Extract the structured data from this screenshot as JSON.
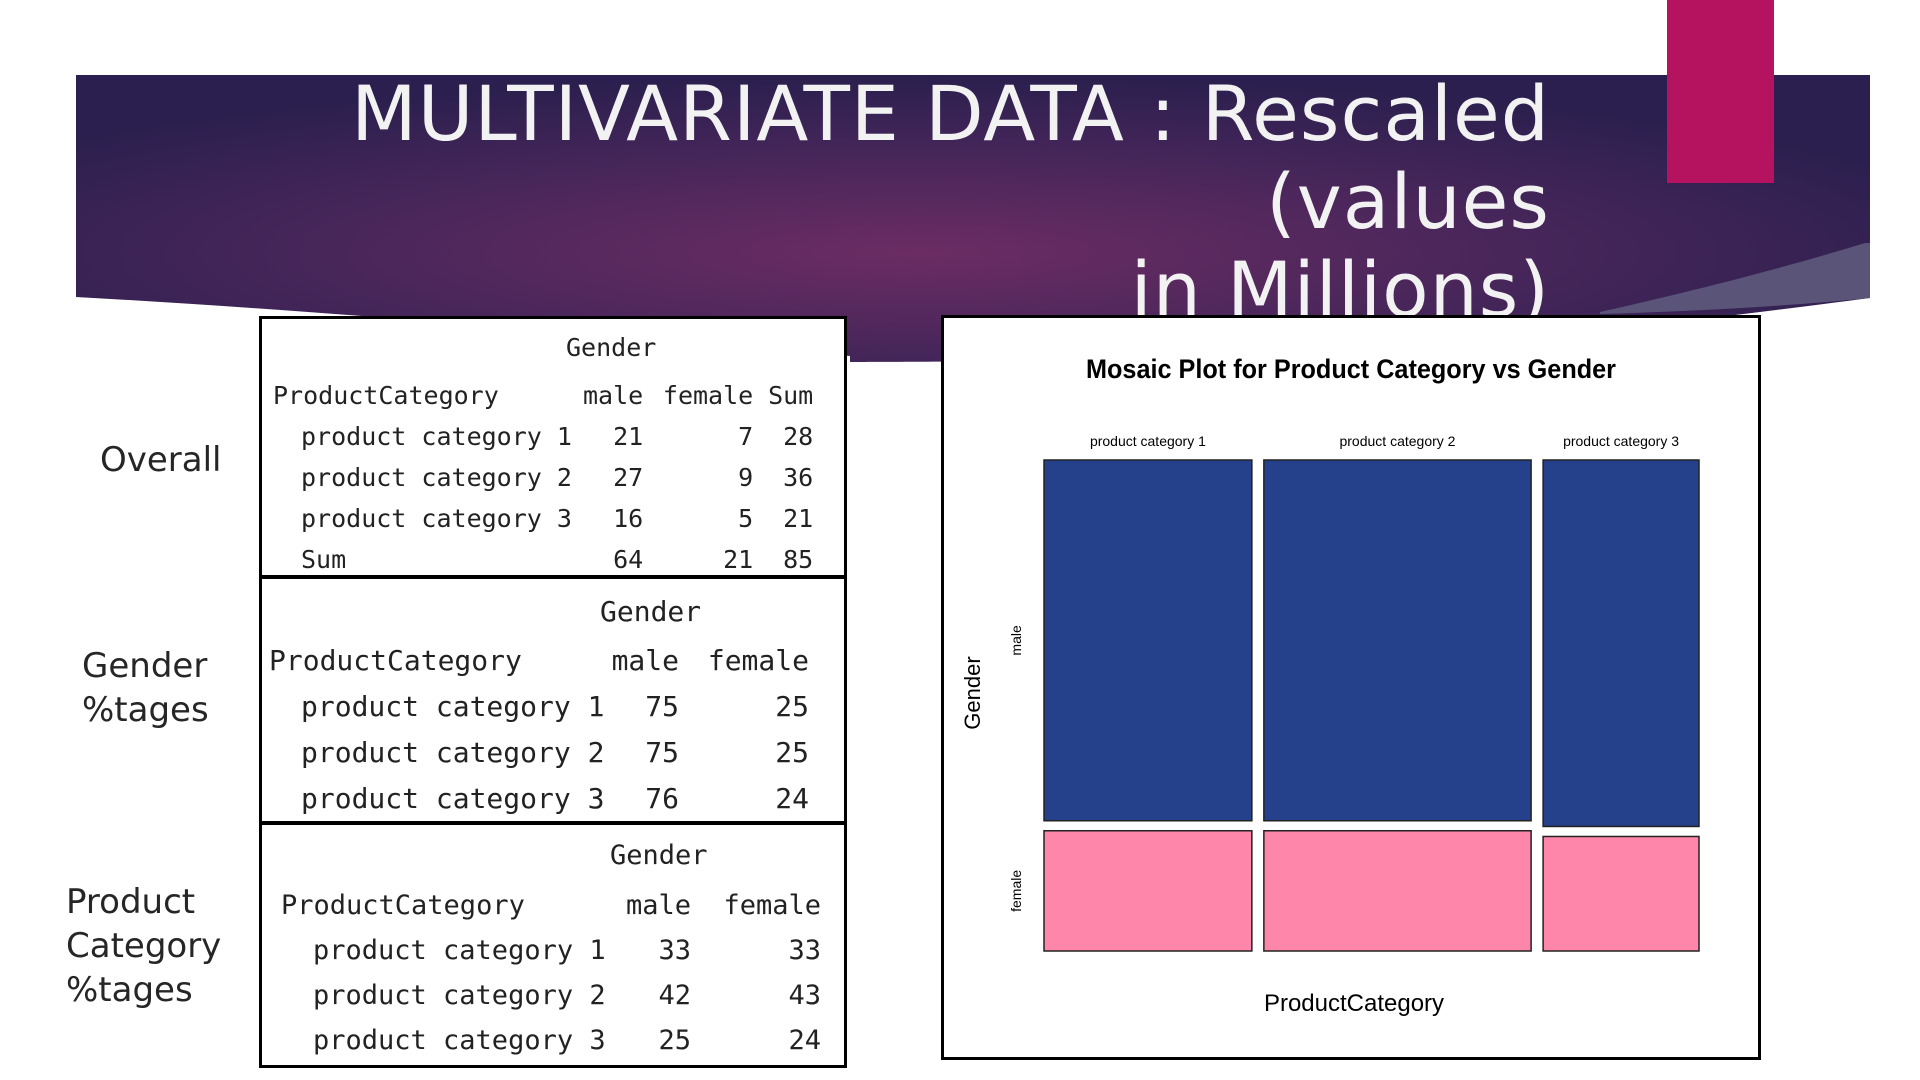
{
  "slide": {
    "title": "MULTIVARIATE DATA : Rescaled (values\nin Millions)",
    "colors": {
      "banner_dark": "#2a1f4e",
      "banner_mid": "#6b2c63",
      "accent": "#b5135f",
      "male": "#26418c",
      "female": "#ff86ab"
    }
  },
  "labels": {
    "overall": "Overall",
    "gender_pct": "Gender\n%tages",
    "category_pct": "Product\nCategory\n%tages"
  },
  "tables": {
    "overall": {
      "header": "Gender",
      "columns": [
        "ProductCategory",
        "male",
        "female",
        "Sum"
      ],
      "rows": [
        [
          "product category 1",
          "21",
          "7",
          "28"
        ],
        [
          "product category 2",
          "27",
          "9",
          "36"
        ],
        [
          "product category 3",
          "16",
          "5",
          "21"
        ],
        [
          "Sum",
          "64",
          "21",
          "85"
        ]
      ]
    },
    "gender_pct": {
      "header": "Gender",
      "columns": [
        "ProductCategory",
        "male",
        "female"
      ],
      "rows": [
        [
          "product category 1",
          "75",
          "25"
        ],
        [
          "product category 2",
          "75",
          "25"
        ],
        [
          "product category 3",
          "76",
          "24"
        ]
      ]
    },
    "category_pct": {
      "header": "Gender",
      "columns": [
        "ProductCategory",
        "male",
        "female"
      ],
      "rows": [
        [
          "product category 1",
          "33",
          "33"
        ],
        [
          "product category 2",
          "42",
          "43"
        ],
        [
          "product category 3",
          "25",
          "24"
        ]
      ]
    }
  },
  "chart_data": {
    "type": "mosaic",
    "title": "Mosaic Plot for Product Category vs Gender",
    "xlabel": "ProductCategory",
    "ylabel": "Gender",
    "categories": [
      "product category 1",
      "product category 2",
      "product category 3"
    ],
    "category_totals": [
      28,
      36,
      21
    ],
    "series": [
      {
        "name": "male",
        "values": [
          21,
          27,
          16
        ],
        "color": "#26418c"
      },
      {
        "name": "female",
        "values": [
          7,
          9,
          5
        ],
        "color": "#ff86ab"
      }
    ]
  }
}
